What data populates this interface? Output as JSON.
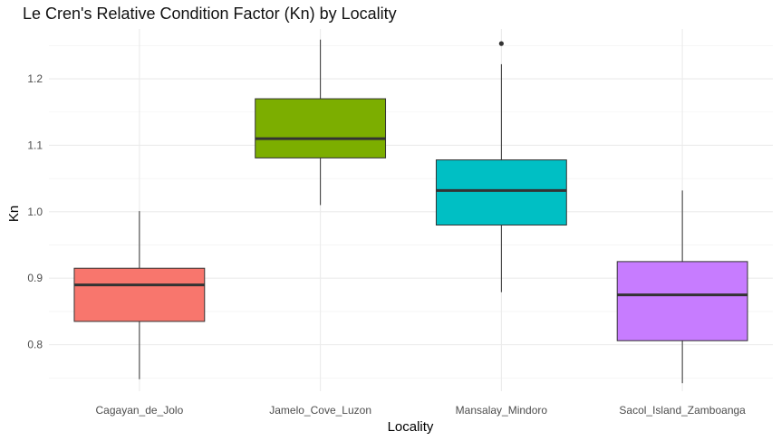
{
  "chart_data": {
    "type": "box",
    "title": "Le Cren's Relative Condition Factor (Kn) by Locality",
    "xlabel": "Locality",
    "ylabel": "Kn",
    "ylim": [
      0.73,
      1.275
    ],
    "y_ticks": [
      0.8,
      0.9,
      1.0,
      1.1,
      1.2
    ],
    "y_tick_labels": [
      "0.8",
      "0.9",
      "1.0",
      "1.1",
      "1.2"
    ],
    "grid": true,
    "legend": "none",
    "categories": [
      "Cagayan_de_Jolo",
      "Jamelo_Cove_Luzon",
      "Mansalay_Mindoro",
      "Sacol_Island_Zamboanga"
    ],
    "boxes": [
      {
        "category": "Cagayan_de_Jolo",
        "whisker_low": 0.748,
        "q1": 0.835,
        "median": 0.89,
        "q3": 0.915,
        "whisker_high": 1.001,
        "outliers": [],
        "color": "#F8766D"
      },
      {
        "category": "Jamelo_Cove_Luzon",
        "whisker_low": 1.01,
        "q1": 1.081,
        "median": 1.11,
        "q3": 1.17,
        "whisker_high": 1.259,
        "outliers": [],
        "color": "#7CAE00"
      },
      {
        "category": "Mansalay_Mindoro",
        "whisker_low": 0.879,
        "q1": 0.98,
        "median": 1.032,
        "q3": 1.078,
        "whisker_high": 1.222,
        "outliers": [
          1.253
        ],
        "color": "#00BFC4"
      },
      {
        "category": "Sacol_Island_Zamboanga",
        "whisker_low": 0.742,
        "q1": 0.806,
        "median": 0.875,
        "q3": 0.925,
        "whisker_high": 1.032,
        "outliers": [],
        "color": "#C77CFF"
      }
    ]
  }
}
